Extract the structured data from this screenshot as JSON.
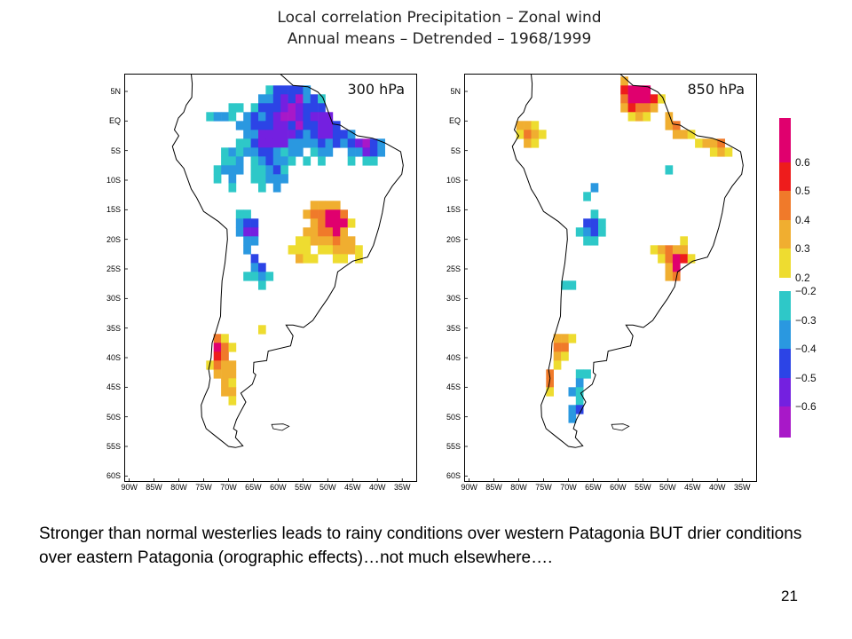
{
  "title": {
    "line1": "Local correlation Precipitation – Zonal wind",
    "line2": "Annual means – Detrended – 1968/1999"
  },
  "panels": [
    {
      "id": "left",
      "label": "300 hPa"
    },
    {
      "id": "right",
      "label": "850 hPa"
    }
  ],
  "axes": {
    "lat_ticks": [
      "5N",
      "EQ",
      "5S",
      "10S",
      "15S",
      "20S",
      "25S",
      "30S",
      "35S",
      "40S",
      "45S",
      "50S",
      "55S",
      "60S"
    ],
    "lat_values": [
      5,
      0,
      -5,
      -10,
      -15,
      -20,
      -25,
      -30,
      -35,
      -40,
      -45,
      -50,
      -55,
      -60
    ],
    "lon_ticks": [
      "90W",
      "85W",
      "80W",
      "75W",
      "70W",
      "65W",
      "60W",
      "55W",
      "50W",
      "45W",
      "40W",
      "35W"
    ],
    "lon_values": [
      -90,
      -85,
      -80,
      -75,
      -70,
      -65,
      -60,
      -55,
      -50,
      -45,
      -40,
      -35
    ],
    "extent": {
      "lon_min": -91,
      "lon_max": -32,
      "lat_min": -61,
      "lat_max": 8
    }
  },
  "colorbar": {
    "positive": [
      {
        "label": "0.6",
        "color": "#e0006e"
      },
      {
        "label": "0.5",
        "color": "#ee1c1c"
      },
      {
        "label": "0.4",
        "color": "#f07a2a"
      },
      {
        "label": "0.3",
        "color": "#f0ae30"
      },
      {
        "label": "0.2",
        "color": "#eedc30"
      }
    ],
    "negative": [
      {
        "label": "−0.2",
        "color": "#2ec8c8"
      },
      {
        "label": "−0.3",
        "color": "#2a98e0"
      },
      {
        "label": "−0.4",
        "color": "#2c44e6"
      },
      {
        "label": "−0.5",
        "color": "#7420e0"
      },
      {
        "label": "−0.6",
        "color": "#a818c8"
      }
    ],
    "top_color": "#e0006e",
    "bottom_color": "#a818c8"
  },
  "map_fields": {
    "300": [
      {
        "lon": -62,
        "lat": -2,
        "r": 6,
        "value": -0.45
      },
      {
        "lon": -50,
        "lat": -1,
        "r": 5,
        "value": -0.5
      },
      {
        "lon": -42,
        "lat": -4,
        "r": 3,
        "value": -0.55
      },
      {
        "lon": -57,
        "lat": 3,
        "r": 4,
        "value": -0.4
      },
      {
        "lon": -73,
        "lat": 1,
        "r": 3,
        "value": -0.25
      },
      {
        "lon": -70,
        "lat": -9,
        "r": 4,
        "value": -0.25
      },
      {
        "lon": -66,
        "lat": -18,
        "r": 3,
        "value": -0.45
      },
      {
        "lon": -64,
        "lat": -25,
        "r": 3,
        "value": -0.35
      },
      {
        "lon": -60,
        "lat": -10,
        "r": 3,
        "value": -0.22
      },
      {
        "lon": -51,
        "lat": -17,
        "r": 4,
        "value": 0.4
      },
      {
        "lon": -48,
        "lat": -17,
        "r": 2,
        "value": 0.55
      },
      {
        "lon": -46,
        "lat": -22,
        "r": 3,
        "value": 0.3
      },
      {
        "lon": -55,
        "lat": -22,
        "r": 3,
        "value": 0.25
      },
      {
        "lon": -72,
        "lat": -40,
        "r": 3,
        "value": 0.45
      },
      {
        "lon": -73,
        "lat": -38,
        "r": 1.5,
        "value": 0.55
      },
      {
        "lon": -70,
        "lat": -45,
        "r": 2.5,
        "value": 0.3
      },
      {
        "lon": -63,
        "lat": -36,
        "r": 1.5,
        "value": 0.22
      }
    ],
    "850": [
      {
        "lon": -55,
        "lat": 4,
        "r": 4,
        "value": 0.5
      },
      {
        "lon": -57,
        "lat": 5,
        "r": 2,
        "value": 0.6
      },
      {
        "lon": -47,
        "lat": -1,
        "r": 3,
        "value": 0.45
      },
      {
        "lon": -40,
        "lat": -4,
        "r": 3,
        "value": 0.35
      },
      {
        "lon": -78,
        "lat": -2,
        "r": 3,
        "value": 0.35
      },
      {
        "lon": -65,
        "lat": -18,
        "r": 2.5,
        "value": -0.45
      },
      {
        "lon": -70,
        "lat": -28,
        "r": 2,
        "value": -0.22
      },
      {
        "lon": -49,
        "lat": -23,
        "r": 4,
        "value": 0.35
      },
      {
        "lon": -47,
        "lat": -25,
        "r": 2,
        "value": 0.55
      },
      {
        "lon": -72,
        "lat": -38,
        "r": 3,
        "value": 0.35
      },
      {
        "lon": -74,
        "lat": -44,
        "r": 2,
        "value": 0.45
      },
      {
        "lon": -67,
        "lat": -45,
        "r": 3,
        "value": -0.3
      },
      {
        "lon": -68,
        "lat": -50,
        "r": 2,
        "value": -0.5
      },
      {
        "lon": -65,
        "lat": -12,
        "r": 2,
        "value": -0.25
      },
      {
        "lon": -50,
        "lat": -8,
        "r": 2,
        "value": -0.22
      }
    ]
  },
  "caption": {
    "text": "Stronger than normal westerlies leads to rainy conditions over western Patagonia BUT drier conditions over eastern Patagonia (orographic effects)…not much elsewhere…."
  },
  "page_number": "21"
}
